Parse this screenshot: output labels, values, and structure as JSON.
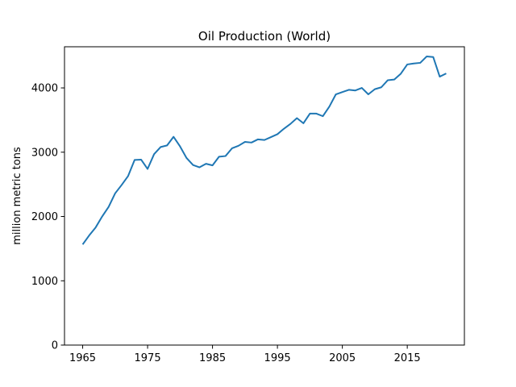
{
  "chart_data": {
    "type": "line",
    "title": "Oil Production (World)",
    "xlabel": "",
    "ylabel": "million metric tons",
    "xlim": [
      1962.2,
      2023.8
    ],
    "ylim": [
      0,
      4640
    ],
    "x_ticks": [
      1965,
      1975,
      1985,
      1995,
      2005,
      2015
    ],
    "y_ticks": [
      0,
      1000,
      2000,
      3000,
      4000
    ],
    "grid": false,
    "legend": "none",
    "series": [
      {
        "color": "#1f77b4",
        "x": [
          1965,
          1966,
          1967,
          1968,
          1969,
          1970,
          1971,
          1972,
          1973,
          1974,
          1975,
          1976,
          1977,
          1978,
          1979,
          1980,
          1981,
          1982,
          1983,
          1984,
          1985,
          1986,
          1987,
          1988,
          1989,
          1990,
          1991,
          1992,
          1993,
          1994,
          1995,
          1996,
          1997,
          1998,
          1999,
          2000,
          2001,
          2002,
          2003,
          2004,
          2005,
          2006,
          2007,
          2008,
          2009,
          2010,
          2011,
          2012,
          2013,
          2014,
          2015,
          2016,
          2017,
          2018,
          2019,
          2020,
          2021
        ],
        "y": [
          1565,
          1705,
          1830,
          2000,
          2150,
          2360,
          2490,
          2630,
          2880,
          2885,
          2740,
          2970,
          3080,
          3105,
          3240,
          3090,
          2910,
          2800,
          2765,
          2820,
          2795,
          2930,
          2940,
          3060,
          3100,
          3160,
          3150,
          3200,
          3190,
          3235,
          3280,
          3365,
          3440,
          3530,
          3450,
          3600,
          3600,
          3560,
          3710,
          3900,
          3935,
          3970,
          3960,
          4000,
          3900,
          3980,
          4010,
          4120,
          4130,
          4220,
          4365,
          4380,
          4390,
          4490,
          4480,
          4175,
          4225
        ]
      }
    ]
  }
}
